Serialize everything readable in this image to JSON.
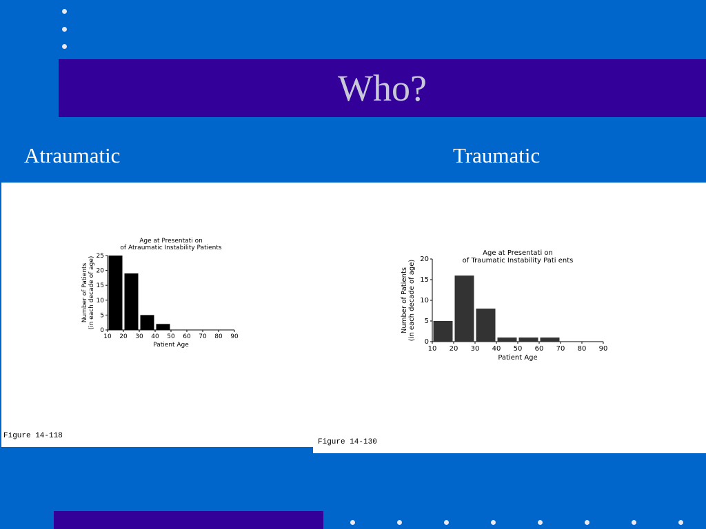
{
  "slide": {
    "title": "Who?",
    "left_label": "Atraumatic",
    "right_label": "Traumatic",
    "accent_background": "#0066cc",
    "accent_band": "#330099"
  },
  "figures": {
    "left_caption": "Figure 14-118",
    "right_caption": "Figure 14-130"
  },
  "chart_data": [
    {
      "type": "bar",
      "title": "Age at Presentation\nof Atraumatic Instability Patients",
      "title_lines": [
        "Age at Presentati on",
        "of Atraumatic Instability Patients"
      ],
      "xlabel": "Patient Age",
      "ylabel_lines": [
        "Number of Patients",
        "(in each decade of age)"
      ],
      "x_ticks": [
        "10",
        "20",
        "30",
        "40",
        "50",
        "60",
        "70",
        "80",
        "90"
      ],
      "y_ticks": [
        "0",
        "5",
        "10",
        "15",
        "20",
        "25"
      ],
      "ylim": [
        0,
        25
      ],
      "xlim": [
        10,
        90
      ],
      "bin_width": 10,
      "bins": [
        10,
        20,
        30,
        40,
        50,
        60,
        70,
        80
      ],
      "values": [
        25,
        19,
        5,
        2,
        0,
        0,
        0,
        0
      ],
      "bar_color": "#000000"
    },
    {
      "type": "bar",
      "title": "Age at Presentation\nof Traumatic Instability Patients",
      "title_lines": [
        "Age at Presentati on",
        "of Traumatic Instability Pati ents"
      ],
      "xlabel": "Patient Age",
      "ylabel_lines": [
        "Number of Patients",
        "(in each decade of age)"
      ],
      "x_ticks": [
        "10",
        "20",
        "30",
        "40",
        "50",
        "60",
        "70",
        "80",
        "90"
      ],
      "y_ticks": [
        "0",
        "5",
        "10",
        "15",
        "20"
      ],
      "ylim": [
        0,
        20
      ],
      "xlim": [
        10,
        90
      ],
      "bin_width": 10,
      "bins": [
        10,
        20,
        30,
        40,
        50,
        60,
        70,
        80
      ],
      "values": [
        5,
        16,
        8,
        1,
        1,
        1,
        0,
        0
      ],
      "bar_color": "#333333"
    }
  ]
}
